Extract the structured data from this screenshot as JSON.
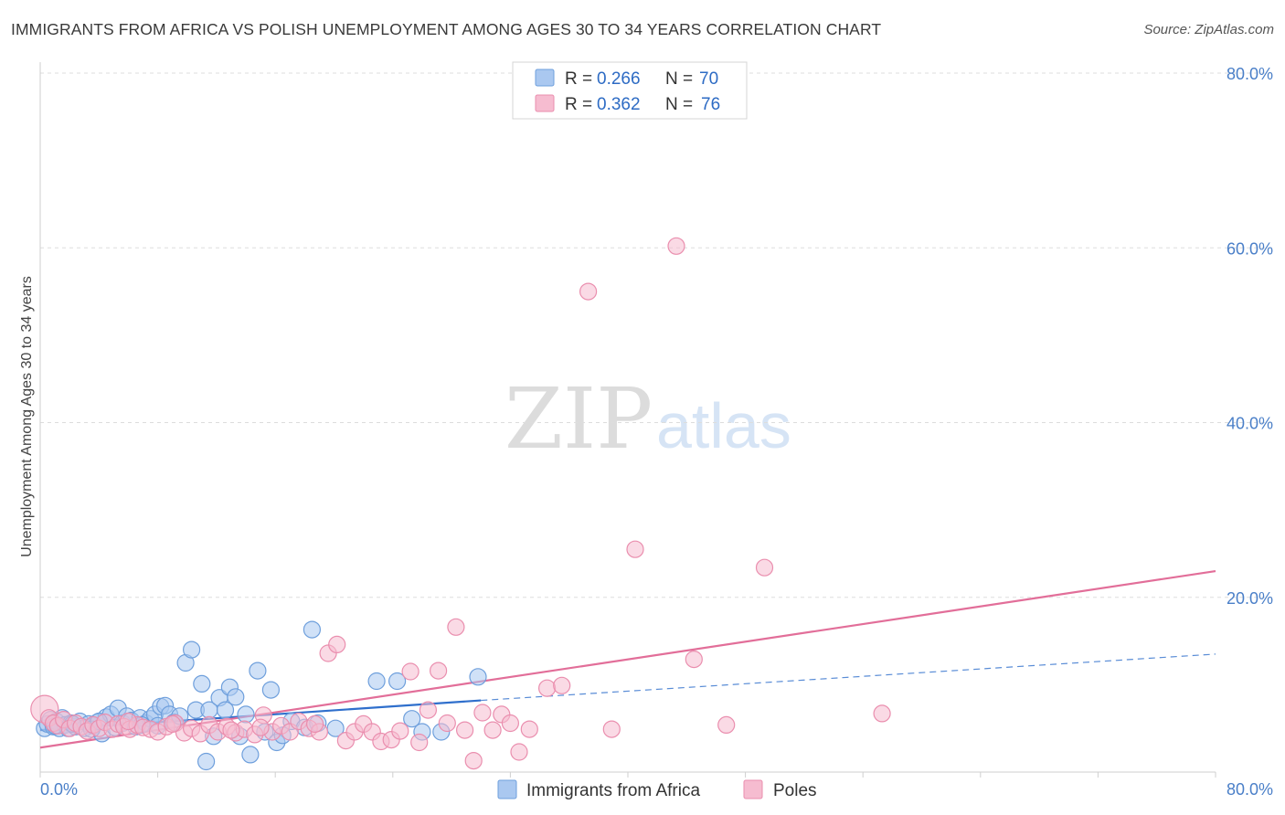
{
  "header": {
    "title": "IMMIGRANTS FROM AFRICA VS POLISH UNEMPLOYMENT AMONG AGES 30 TO 34 YEARS CORRELATION CHART",
    "source": "Source: ZipAtlas.com"
  },
  "watermark": {
    "zip": "ZIP",
    "atlas": "atlas"
  },
  "colors": {
    "blue_fill": "#aac8f0",
    "blue_stroke": "#6e9fdc",
    "blue_line": "#2f6fcc",
    "pink_fill": "#f6bcd0",
    "pink_stroke": "#ea8eae",
    "pink_line": "#e26e99",
    "tick_text": "#4a7fc8",
    "grid": "#dddddd"
  },
  "legend": {
    "r_label": "R = ",
    "n_label": "N = ",
    "entries": [
      {
        "r": "0.266",
        "n": "70",
        "color": "blue"
      },
      {
        "r": "0.362",
        "n": "76",
        "color": "pink"
      }
    ]
  },
  "chart_data": {
    "type": "scatter",
    "xlabel": "",
    "ylabel": "Unemployment Among Ages 30 to 34 years",
    "xlim": [
      0,
      80
    ],
    "ylim": [
      0,
      80
    ],
    "x_tick_labels": [
      "0.0%",
      "80.0%"
    ],
    "y_tick_values": [
      20,
      40,
      60,
      80
    ],
    "y_tick_labels": [
      "20.0%",
      "40.0%",
      "60.0%",
      "80.0%"
    ],
    "grid": true,
    "legend_position": "top-center",
    "series": [
      {
        "name": "Immigrants from Africa",
        "color": "blue",
        "r": 0.266,
        "n": 70,
        "trend": {
          "x": [
            0,
            30
          ],
          "y": [
            4.8,
            8.2
          ],
          "dashed_to": [
            80,
            13.5
          ]
        },
        "points": [
          [
            0.3,
            5.0
          ],
          [
            0.5,
            5.5
          ],
          [
            0.7,
            6.0
          ],
          [
            0.9,
            5.2
          ],
          [
            1.1,
            5.8
          ],
          [
            1.3,
            5.0
          ],
          [
            1.5,
            6.2
          ],
          [
            1.7,
            5.4
          ],
          [
            1.9,
            5.0
          ],
          [
            2.1,
            5.6
          ],
          [
            2.4,
            5.2
          ],
          [
            2.7,
            5.8
          ],
          [
            3.0,
            5.0
          ],
          [
            3.3,
            5.5
          ],
          [
            3.6,
            5.3
          ],
          [
            3.9,
            5.7
          ],
          [
            4.2,
            4.4
          ],
          [
            4.5,
            6.3
          ],
          [
            4.8,
            6.6
          ],
          [
            5.1,
            5.1
          ],
          [
            5.3,
            7.3
          ],
          [
            5.6,
            5.6
          ],
          [
            5.9,
            6.4
          ],
          [
            6.2,
            5.9
          ],
          [
            6.5,
            5.2
          ],
          [
            6.8,
            6.2
          ],
          [
            7.2,
            5.6
          ],
          [
            7.5,
            6.1
          ],
          [
            7.8,
            6.6
          ],
          [
            8.2,
            7.5
          ],
          [
            8.5,
            7.6
          ],
          [
            8.8,
            6.6
          ],
          [
            9.1,
            5.7
          ],
          [
            9.5,
            6.4
          ],
          [
            9.9,
            12.5
          ],
          [
            10.3,
            14.0
          ],
          [
            10.6,
            7.1
          ],
          [
            11.0,
            10.1
          ],
          [
            11.5,
            7.1
          ],
          [
            11.8,
            4.1
          ],
          [
            12.2,
            8.5
          ],
          [
            12.6,
            7.1
          ],
          [
            12.9,
            9.7
          ],
          [
            13.3,
            8.6
          ],
          [
            13.6,
            4.1
          ],
          [
            14.0,
            6.6
          ],
          [
            14.3,
            2.0
          ],
          [
            14.8,
            11.6
          ],
          [
            15.3,
            4.6
          ],
          [
            15.7,
            9.4
          ],
          [
            16.1,
            3.4
          ],
          [
            16.5,
            4.2
          ],
          [
            17.1,
            5.8
          ],
          [
            18.0,
            5.1
          ],
          [
            18.5,
            16.3
          ],
          [
            18.9,
            5.6
          ],
          [
            20.1,
            5.0
          ],
          [
            22.9,
            10.4
          ],
          [
            24.3,
            10.4
          ],
          [
            25.3,
            6.1
          ],
          [
            26.0,
            4.6
          ],
          [
            27.3,
            4.6
          ],
          [
            29.8,
            10.9
          ],
          [
            11.3,
            1.2
          ],
          [
            6.9,
            5.4
          ],
          [
            3.5,
            4.9
          ],
          [
            2.2,
            5.5
          ],
          [
            1.0,
            5.3
          ],
          [
            4.0,
            5.8
          ],
          [
            8.0,
            5.3
          ]
        ]
      },
      {
        "name": "Poles",
        "color": "pink",
        "r": 0.362,
        "n": 76,
        "trend": {
          "x": [
            0,
            80
          ],
          "y": [
            2.8,
            23.0
          ]
        },
        "points": [
          [
            0.3,
            7.2
          ],
          [
            0.6,
            6.2
          ],
          [
            0.9,
            5.6
          ],
          [
            1.2,
            5.3
          ],
          [
            1.6,
            6.0
          ],
          [
            2.0,
            5.0
          ],
          [
            2.4,
            5.6
          ],
          [
            2.8,
            5.2
          ],
          [
            3.2,
            4.7
          ],
          [
            3.6,
            5.4
          ],
          [
            4.0,
            5.0
          ],
          [
            4.4,
            5.7
          ],
          [
            4.9,
            4.9
          ],
          [
            5.3,
            5.5
          ],
          [
            5.7,
            5.2
          ],
          [
            6.1,
            4.9
          ],
          [
            6.6,
            5.4
          ],
          [
            7.0,
            5.1
          ],
          [
            7.5,
            4.9
          ],
          [
            8.0,
            4.6
          ],
          [
            8.6,
            5.2
          ],
          [
            9.2,
            5.6
          ],
          [
            9.8,
            4.5
          ],
          [
            10.3,
            5.0
          ],
          [
            10.9,
            4.4
          ],
          [
            11.5,
            5.4
          ],
          [
            12.1,
            4.6
          ],
          [
            12.7,
            5.2
          ],
          [
            13.3,
            4.5
          ],
          [
            13.9,
            4.9
          ],
          [
            14.6,
            4.3
          ],
          [
            15.2,
            6.5
          ],
          [
            15.8,
            4.6
          ],
          [
            16.4,
            5.3
          ],
          [
            17.0,
            4.6
          ],
          [
            17.6,
            5.8
          ],
          [
            18.3,
            5.0
          ],
          [
            19.0,
            4.6
          ],
          [
            19.6,
            13.6
          ],
          [
            20.2,
            14.6
          ],
          [
            20.8,
            3.6
          ],
          [
            21.4,
            4.6
          ],
          [
            22.0,
            5.5
          ],
          [
            22.6,
            4.6
          ],
          [
            23.2,
            3.5
          ],
          [
            23.9,
            3.7
          ],
          [
            24.5,
            4.7
          ],
          [
            25.2,
            11.5
          ],
          [
            25.8,
            3.4
          ],
          [
            26.4,
            7.1
          ],
          [
            27.1,
            11.6
          ],
          [
            27.7,
            5.6
          ],
          [
            28.3,
            16.6
          ],
          [
            28.9,
            4.8
          ],
          [
            29.5,
            1.3
          ],
          [
            30.1,
            6.8
          ],
          [
            30.8,
            4.8
          ],
          [
            31.4,
            6.6
          ],
          [
            32.0,
            5.6
          ],
          [
            32.6,
            2.3
          ],
          [
            33.3,
            4.9
          ],
          [
            34.5,
            9.6
          ],
          [
            35.5,
            9.9
          ],
          [
            37.3,
            55.0
          ],
          [
            38.9,
            4.9
          ],
          [
            40.5,
            25.5
          ],
          [
            43.3,
            60.2
          ],
          [
            44.5,
            12.9
          ],
          [
            46.7,
            5.4
          ],
          [
            49.3,
            23.4
          ],
          [
            57.3,
            6.7
          ],
          [
            13.0,
            4.8
          ],
          [
            9.0,
            5.5
          ],
          [
            6.0,
            5.8
          ],
          [
            15.0,
            5.1
          ],
          [
            18.7,
            5.5
          ]
        ]
      }
    ]
  }
}
